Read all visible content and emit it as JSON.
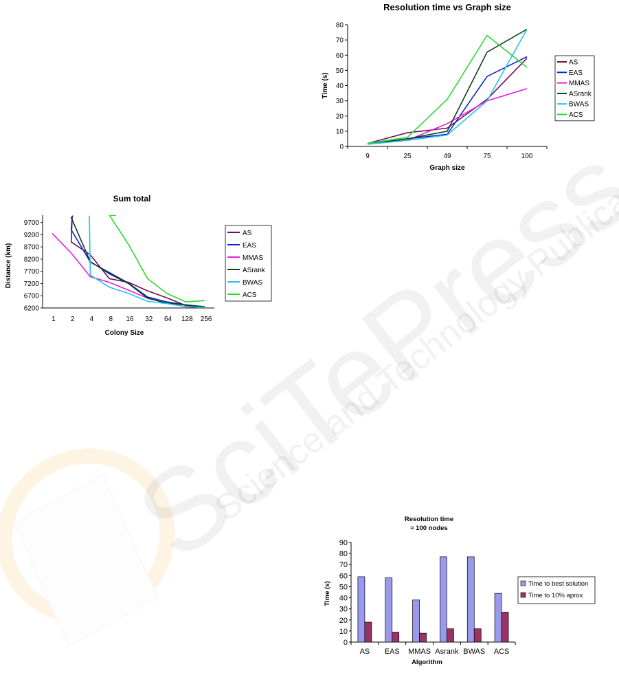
{
  "watermark": {
    "text": "SciTePress",
    "subtext": "Science and Technology Publications"
  },
  "colors": {
    "AS": "#6d0f5a",
    "EAS": "#0a24cc",
    "MMAS": "#e81ce0",
    "ASrank": "#0d3d1e",
    "BWAS": "#22c2ec",
    "ACS": "#2bd92b",
    "best_bar": "#9999ee",
    "aprox_bar": "#993366"
  },
  "chart_data": [
    {
      "id": "resolution-time-vs-graph-size",
      "type": "line",
      "title": "Resolution time vs Graph size",
      "xlabel": "Graph size",
      "ylabel": "Time (s)",
      "categories": [
        "9",
        "25",
        "49",
        "75",
        "100"
      ],
      "ylim": [
        0,
        80
      ],
      "yticks": [
        0,
        10,
        20,
        30,
        40,
        50,
        60,
        70,
        80
      ],
      "grid": false,
      "legend": "right",
      "series": [
        {
          "name": "AS",
          "values": [
            2,
            9,
            12,
            31,
            58
          ]
        },
        {
          "name": "EAS",
          "values": [
            1.5,
            5,
            8,
            46,
            59
          ]
        },
        {
          "name": "MMAS",
          "values": [
            1.5,
            4,
            15,
            30,
            38
          ]
        },
        {
          "name": "ASrank",
          "values": [
            1.5,
            5,
            10,
            62,
            77
          ]
        },
        {
          "name": "BWAS",
          "values": [
            1.5,
            4,
            7.5,
            30,
            77
          ]
        },
        {
          "name": "ACS",
          "values": [
            2,
            6,
            31,
            73,
            52
          ]
        }
      ]
    },
    {
      "id": "sum-total",
      "type": "line",
      "title": "Sum total",
      "xlabel": "Colony Size",
      "ylabel": "Distance (km)",
      "categories": [
        "1",
        "2",
        "4",
        "8",
        "16",
        "32",
        "64",
        "128",
        "256"
      ],
      "ylim": [
        6200,
        10000
      ],
      "yticks": [
        6200,
        6700,
        7200,
        7700,
        8200,
        8700,
        9200,
        9700
      ],
      "grid": false,
      "legend": "right",
      "series": [
        {
          "name": "AS",
          "values": [
            null,
            8900,
            8380,
            7400,
            7250,
            6900,
            6620,
            6300,
            6200
          ]
        },
        {
          "name": "EAS",
          "values": [
            null,
            9400,
            8080,
            7650,
            7220,
            6650,
            6450,
            6320,
            6230
          ]
        },
        {
          "name": "MMAS",
          "values": [
            9250,
            8450,
            7480,
            7250,
            6930,
            6600,
            6400,
            6250,
            6220
          ]
        },
        {
          "name": "ASrank",
          "values": [
            null,
            9900,
            8100,
            7600,
            7200,
            6600,
            6400,
            6330,
            6250
          ]
        },
        {
          "name": "BWAS",
          "values": [
            null,
            null,
            7550,
            7050,
            6800,
            6470,
            6380,
            6260,
            6210
          ]
        },
        {
          "name": "ACS",
          "values": [
            null,
            null,
            null,
            10000,
            8800,
            7400,
            6800,
            6450,
            6500
          ]
        }
      ],
      "series_start": {
        "AS": 9960,
        "EAS": 9950,
        "ASrank": 9980,
        "BWAS": 9980,
        "ACS": 9990
      },
      "series_start_x": {
        "AS": 1.55,
        "EAS": 1.55,
        "ASrank": 1.6,
        "BWAS": 2.45,
        "ACS": 3.85
      }
    },
    {
      "id": "resolution-time-100-nodes",
      "type": "bar",
      "title": "Resolution time",
      "subtitle": "≈ 100 nodes",
      "xlabel": "Algorithm",
      "ylabel": "Time (s)",
      "categories": [
        "AS",
        "EAS",
        "MMAS",
        "Asrank",
        "BWAS",
        "ACS"
      ],
      "ylim": [
        0,
        90
      ],
      "yticks": [
        0,
        10,
        20,
        30,
        40,
        50,
        60,
        70,
        80,
        90
      ],
      "grid": false,
      "legend": "right",
      "series": [
        {
          "name": "Time to best solution",
          "values": [
            59,
            58,
            38,
            77,
            77,
            44
          ]
        },
        {
          "name": "Time to 10% aprox",
          "values": [
            18,
            9,
            8,
            12,
            12,
            27
          ]
        }
      ]
    }
  ]
}
